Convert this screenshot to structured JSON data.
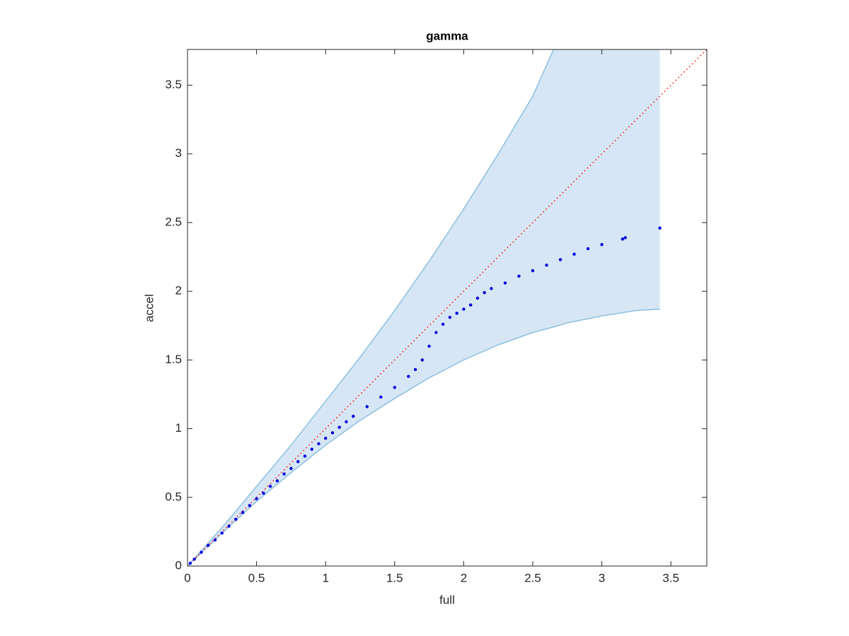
{
  "chart_data": {
    "type": "scatter",
    "title": "gamma",
    "x_label": "full",
    "y_label": "accel",
    "xlim": [
      0,
      3.76
    ],
    "ylim": [
      0,
      3.76
    ],
    "xticks": [
      0,
      0.5,
      1,
      1.5,
      2,
      2.5,
      3,
      3.5
    ],
    "yticks": [
      0,
      0.5,
      1,
      1.5,
      2,
      2.5,
      3,
      3.5
    ],
    "band": {
      "color": "#d6e6f4",
      "edge_color": "#8dbfe0",
      "x": [
        0,
        0.25,
        0.5,
        0.75,
        1,
        1.25,
        1.5,
        1.75,
        2,
        2.25,
        2.5,
        2.65,
        2.75,
        3,
        3.25,
        3.42
      ],
      "upper": [
        0,
        0.28,
        0.58,
        0.88,
        1.2,
        1.52,
        1.86,
        2.22,
        2.6,
        3.0,
        3.42,
        3.76,
        null,
        null,
        null,
        null
      ],
      "lower": [
        0,
        0.24,
        0.47,
        0.68,
        0.88,
        1.06,
        1.22,
        1.37,
        1.5,
        1.61,
        1.7,
        1.74,
        1.77,
        1.82,
        1.86,
        1.87
      ]
    },
    "reference_line": {
      "color": "#ff0000",
      "x": [
        0,
        3.76
      ],
      "y": [
        0,
        3.76
      ]
    },
    "series": [
      {
        "color": "#0000e0",
        "x": [
          0.02,
          0.05,
          0.1,
          0.15,
          0.2,
          0.25,
          0.3,
          0.35,
          0.4,
          0.45,
          0.5,
          0.55,
          0.6,
          0.65,
          0.7,
          0.75,
          0.8,
          0.85,
          0.9,
          0.95,
          1.0,
          1.05,
          1.1,
          1.15,
          1.2,
          1.3,
          1.4,
          1.5,
          1.6,
          1.65,
          1.7,
          1.75,
          1.8,
          1.85,
          1.9,
          1.95,
          2.0,
          2.05,
          2.1,
          2.15,
          2.2,
          2.3,
          2.4,
          2.5,
          2.6,
          2.7,
          2.8,
          2.9,
          3.0,
          3.15,
          3.17,
          3.42
        ],
        "values": [
          0.02,
          0.05,
          0.1,
          0.15,
          0.19,
          0.24,
          0.29,
          0.34,
          0.39,
          0.44,
          0.49,
          0.53,
          0.58,
          0.62,
          0.67,
          0.71,
          0.76,
          0.8,
          0.85,
          0.89,
          0.93,
          0.97,
          1.01,
          1.05,
          1.09,
          1.16,
          1.23,
          1.3,
          1.38,
          1.43,
          1.5,
          1.6,
          1.7,
          1.76,
          1.81,
          1.84,
          1.87,
          1.9,
          1.95,
          1.99,
          2.02,
          2.06,
          2.11,
          2.15,
          2.19,
          2.23,
          2.27,
          2.31,
          2.34,
          2.38,
          2.39,
          2.46
        ]
      }
    ]
  }
}
